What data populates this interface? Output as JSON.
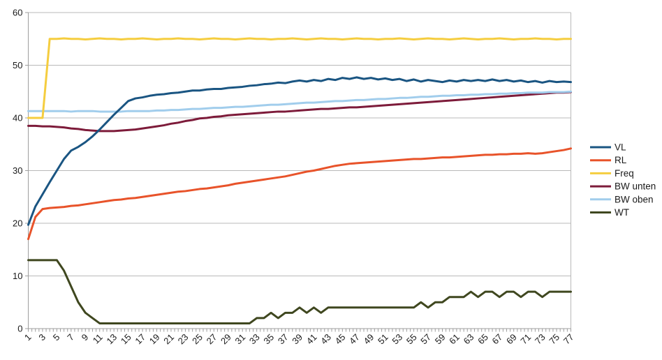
{
  "chart_data": {
    "type": "line",
    "title": "",
    "xlabel": "",
    "ylabel": "",
    "x_range": [
      1,
      77
    ],
    "x_tick_step": 2,
    "x_minor_tick_step": 0.5,
    "x_tick_labels": [
      "1",
      "3",
      "5",
      "7",
      "9",
      "11",
      "13",
      "15",
      "17",
      "19",
      "21",
      "23",
      "25",
      "27",
      "29",
      "31",
      "33",
      "35",
      "37",
      "39",
      "41",
      "43",
      "45",
      "47",
      "49",
      "51",
      "53",
      "55",
      "57",
      "59",
      "61",
      "63",
      "65",
      "67",
      "69",
      "71",
      "73",
      "75",
      "77"
    ],
    "y_ticks": [
      0,
      10,
      20,
      30,
      40,
      50,
      60
    ],
    "ylim": [
      0,
      60
    ],
    "grid": "horizontal",
    "legend_position": "right",
    "series": [
      {
        "name": "VL",
        "color": "#1a5582",
        "values": [
          19.7,
          23.2,
          25.5,
          27.8,
          30.0,
          32.2,
          33.8,
          34.5,
          35.4,
          36.5,
          37.8,
          39.2,
          40.6,
          41.9,
          43.2,
          43.7,
          43.9,
          44.2,
          44.4,
          44.5,
          44.7,
          44.8,
          45.0,
          45.2,
          45.2,
          45.4,
          45.5,
          45.5,
          45.7,
          45.8,
          45.9,
          46.1,
          46.2,
          46.4,
          46.5,
          46.7,
          46.6,
          46.9,
          47.1,
          46.9,
          47.2,
          47.0,
          47.4,
          47.2,
          47.6,
          47.4,
          47.7,
          47.4,
          47.6,
          47.3,
          47.5,
          47.2,
          47.4,
          47.0,
          47.3,
          46.9,
          47.2,
          47.0,
          46.8,
          47.1,
          46.9,
          47.2,
          47.0,
          47.2,
          47.0,
          47.3,
          47.0,
          47.2,
          46.9,
          47.1,
          46.8,
          47.0,
          46.7,
          47.0,
          46.8,
          46.9,
          46.8
        ]
      },
      {
        "name": "RL",
        "color": "#e8532a",
        "values": [
          17.0,
          21.2,
          22.7,
          22.9,
          23.0,
          23.1,
          23.3,
          23.4,
          23.6,
          23.8,
          24.0,
          24.2,
          24.4,
          24.5,
          24.7,
          24.8,
          25.0,
          25.2,
          25.4,
          25.6,
          25.8,
          26.0,
          26.1,
          26.3,
          26.5,
          26.6,
          26.8,
          27.0,
          27.2,
          27.5,
          27.7,
          27.9,
          28.1,
          28.3,
          28.5,
          28.7,
          28.9,
          29.2,
          29.5,
          29.8,
          30.0,
          30.3,
          30.6,
          30.9,
          31.1,
          31.3,
          31.4,
          31.5,
          31.6,
          31.7,
          31.8,
          31.9,
          32.0,
          32.1,
          32.2,
          32.2,
          32.3,
          32.4,
          32.5,
          32.5,
          32.6,
          32.7,
          32.8,
          32.9,
          33.0,
          33.0,
          33.1,
          33.1,
          33.2,
          33.2,
          33.3,
          33.2,
          33.3,
          33.5,
          33.7,
          33.9,
          34.2
        ]
      },
      {
        "name": "Freq",
        "color": "#f5cd3f",
        "values": [
          40,
          40,
          40,
          55,
          55,
          55.1,
          55,
          55,
          54.9,
          55,
          55.1,
          55,
          55,
          54.9,
          55,
          55,
          55.1,
          55,
          54.9,
          55,
          55,
          55.1,
          55,
          55,
          54.9,
          55,
          55.1,
          55,
          55,
          54.9,
          55,
          55.1,
          55,
          55,
          54.9,
          55,
          55,
          55.1,
          55,
          54.9,
          55,
          55.1,
          55,
          55,
          54.9,
          55,
          55.1,
          55,
          55,
          54.9,
          55,
          55,
          55.1,
          55,
          54.9,
          55,
          55.1,
          55,
          55,
          54.9,
          55,
          55.1,
          55,
          54.9,
          55,
          55,
          55.1,
          55,
          54.9,
          55,
          55,
          55.1,
          55,
          55,
          54.9,
          55,
          55
        ]
      },
      {
        "name": "BW unten",
        "color": "#7d1b3a",
        "values": [
          38.5,
          38.5,
          38.4,
          38.4,
          38.3,
          38.2,
          38.0,
          37.9,
          37.7,
          37.6,
          37.5,
          37.5,
          37.5,
          37.6,
          37.7,
          37.8,
          38.0,
          38.2,
          38.4,
          38.6,
          38.9,
          39.1,
          39.4,
          39.6,
          39.9,
          40.0,
          40.2,
          40.3,
          40.5,
          40.6,
          40.7,
          40.8,
          40.9,
          41.0,
          41.1,
          41.2,
          41.2,
          41.3,
          41.4,
          41.5,
          41.6,
          41.7,
          41.7,
          41.8,
          41.9,
          42.0,
          42.0,
          42.1,
          42.2,
          42.3,
          42.4,
          42.5,
          42.6,
          42.7,
          42.8,
          42.9,
          43.0,
          43.1,
          43.2,
          43.3,
          43.4,
          43.5,
          43.6,
          43.7,
          43.8,
          43.9,
          44.0,
          44.1,
          44.2,
          44.3,
          44.4,
          44.5,
          44.6,
          44.7,
          44.8,
          44.8,
          44.9
        ]
      },
      {
        "name": "BW oben",
        "color": "#a1cdec",
        "values": [
          41.3,
          41.3,
          41.3,
          41.3,
          41.3,
          41.3,
          41.2,
          41.3,
          41.3,
          41.3,
          41.2,
          41.2,
          41.2,
          41.2,
          41.3,
          41.3,
          41.3,
          41.3,
          41.4,
          41.4,
          41.5,
          41.5,
          41.6,
          41.7,
          41.7,
          41.8,
          41.9,
          41.9,
          42.0,
          42.1,
          42.1,
          42.2,
          42.3,
          42.4,
          42.5,
          42.5,
          42.6,
          42.7,
          42.8,
          42.9,
          42.9,
          43.0,
          43.1,
          43.2,
          43.2,
          43.3,
          43.4,
          43.4,
          43.5,
          43.6,
          43.6,
          43.7,
          43.8,
          43.8,
          43.9,
          44.0,
          44.0,
          44.1,
          44.2,
          44.2,
          44.3,
          44.3,
          44.4,
          44.4,
          44.5,
          44.5,
          44.6,
          44.6,
          44.7,
          44.7,
          44.8,
          44.8,
          44.8,
          44.9,
          44.9,
          44.9,
          45.0
        ]
      },
      {
        "name": "WT",
        "color": "#3f471f",
        "values": [
          13,
          13,
          13,
          13,
          13,
          11,
          8,
          5,
          3,
          2,
          1,
          1,
          1,
          1,
          1,
          1,
          1,
          1,
          1,
          1,
          1,
          1,
          1,
          1,
          1,
          1,
          1,
          1,
          1,
          1,
          1,
          1,
          2,
          2,
          3,
          2,
          3,
          3,
          4,
          3,
          4,
          3,
          4,
          4,
          4,
          4,
          4,
          4,
          4,
          4,
          4,
          4,
          4,
          4,
          4,
          5,
          4,
          5,
          5,
          6,
          6,
          6,
          7,
          6,
          7,
          7,
          6,
          7,
          7,
          6,
          7,
          7,
          6,
          7,
          7,
          7,
          7
        ]
      }
    ]
  },
  "style": {
    "background": "#ffffff",
    "gridline_color": "#b9b9b9",
    "axis_color": "#9e9e9e",
    "text_color": "#1a1a1a",
    "series_line_width": 3,
    "legend_swatch_width": 30,
    "legend_swatch_height": 3
  }
}
